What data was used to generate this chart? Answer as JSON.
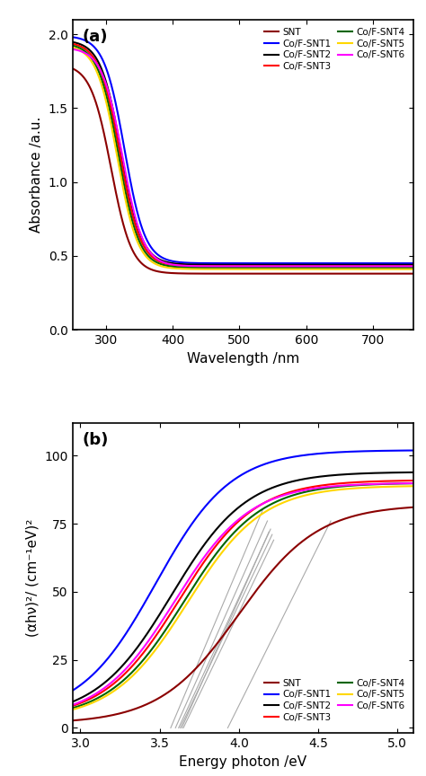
{
  "panel_a": {
    "title": "(a)",
    "xlabel": "Wavelength /nm",
    "ylabel": "Absorbance /a.u.",
    "xlim": [
      250,
      760
    ],
    "ylim": [
      0.0,
      2.1
    ],
    "yticks": [
      0.0,
      0.5,
      1.0,
      1.5,
      2.0
    ],
    "xticks": [
      300,
      400,
      500,
      600,
      700
    ],
    "series_order": [
      "SNT",
      "Co/F-SNT1",
      "Co/F-SNT2",
      "Co/F-SNT3",
      "Co/F-SNT4",
      "Co/F-SNT5",
      "Co/F-SNT6"
    ],
    "series": {
      "SNT": {
        "color": "#8B0000",
        "lw": 1.5,
        "peak": 1.8,
        "floor": 0.38,
        "x0": 308,
        "k": 0.065
      },
      "Co/F-SNT1": {
        "color": "#0000FF",
        "lw": 1.5,
        "peak": 1.99,
        "floor": 0.45,
        "x0": 328,
        "k": 0.065
      },
      "Co/F-SNT2": {
        "color": "#000000",
        "lw": 1.5,
        "peak": 1.96,
        "floor": 0.44,
        "x0": 323,
        "k": 0.065
      },
      "Co/F-SNT3": {
        "color": "#FF0000",
        "lw": 1.5,
        "peak": 1.95,
        "floor": 0.43,
        "x0": 321,
        "k": 0.065
      },
      "Co/F-SNT4": {
        "color": "#006400",
        "lw": 1.5,
        "peak": 1.94,
        "floor": 0.42,
        "x0": 319,
        "k": 0.065
      },
      "Co/F-SNT5": {
        "color": "#FFD700",
        "lw": 1.5,
        "peak": 1.93,
        "floor": 0.41,
        "x0": 317,
        "k": 0.065
      },
      "Co/F-SNT6": {
        "color": "#FF00FF",
        "lw": 1.5,
        "peak": 1.91,
        "floor": 0.43,
        "x0": 325,
        "k": 0.065
      }
    }
  },
  "panel_b": {
    "title": "(b)",
    "xlabel": "Energy photon /eV",
    "ylabel": "(αhν)²/ (cm⁻¹eV)²",
    "xlim": [
      2.95,
      5.1
    ],
    "ylim": [
      -2,
      112
    ],
    "yticks": [
      0,
      25,
      50,
      75,
      100
    ],
    "xticks": [
      3.0,
      3.5,
      4.0,
      4.5,
      5.0
    ],
    "series_order": [
      "SNT",
      "Co/F-SNT1",
      "Co/F-SNT2",
      "Co/F-SNT3",
      "Co/F-SNT4",
      "Co/F-SNT5",
      "Co/F-SNT6"
    ],
    "series": {
      "SNT": {
        "color": "#8B0000",
        "lw": 1.5,
        "Eg": 3.93,
        "scale": 38.0,
        "base": 1.5,
        "exp": 2.0
      },
      "Co/F-SNT1": {
        "color": "#0000FF",
        "lw": 1.5,
        "Eg": 3.58,
        "scale": 55.0,
        "base": 3.5,
        "exp": 2.0
      },
      "Co/F-SNT2": {
        "color": "#000000",
        "lw": 1.5,
        "Eg": 3.63,
        "scale": 52.0,
        "base": 3.2,
        "exp": 2.0
      },
      "Co/F-SNT3": {
        "color": "#FF0000",
        "lw": 1.5,
        "Eg": 3.66,
        "scale": 50.0,
        "base": 3.0,
        "exp": 2.0
      },
      "Co/F-SNT4": {
        "color": "#006400",
        "lw": 1.5,
        "Eg": 3.68,
        "scale": 49.0,
        "base": 2.8,
        "exp": 2.0
      },
      "Co/F-SNT5": {
        "color": "#FFD700",
        "lw": 1.5,
        "Eg": 3.7,
        "scale": 47.0,
        "base": 2.7,
        "exp": 2.0
      },
      "Co/F-SNT6": {
        "color": "#FF00FF",
        "lw": 1.5,
        "Eg": 3.65,
        "scale": 50.0,
        "base": 2.9,
        "exp": 2.0
      }
    },
    "tangent_lines": [
      {
        "Eg": 3.58,
        "slope": 135,
        "color": "#aaaaaa",
        "lw": 0.8
      },
      {
        "Eg": 3.63,
        "slope": 128,
        "color": "#aaaaaa",
        "lw": 0.8
      },
      {
        "Eg": 3.66,
        "slope": 123,
        "color": "#aaaaaa",
        "lw": 0.8
      },
      {
        "Eg": 3.68,
        "slope": 120,
        "color": "#aaaaaa",
        "lw": 0.8
      },
      {
        "Eg": 3.7,
        "slope": 116,
        "color": "#aaaaaa",
        "lw": 0.8
      },
      {
        "Eg": 3.65,
        "slope": 122,
        "color": "#aaaaaa",
        "lw": 0.8
      },
      {
        "Eg": 3.93,
        "slope": 95,
        "color": "#aaaaaa",
        "lw": 0.8
      }
    ]
  },
  "legend": {
    "entries_col1": [
      "SNT",
      "Co/F-SNT1",
      "Co/F-SNT2",
      "Co/F-SNT3"
    ],
    "entries_col2": [
      "Co/F-SNT4",
      "Co/F-SNT5",
      "Co/F-SNT6"
    ],
    "colors_col1": [
      "#8B0000",
      "#0000FF",
      "#000000",
      "#FF0000"
    ],
    "colors_col2": [
      "#006400",
      "#FFD700",
      "#FF00FF"
    ]
  },
  "background_color": "#ffffff",
  "spine_color": "#000000"
}
